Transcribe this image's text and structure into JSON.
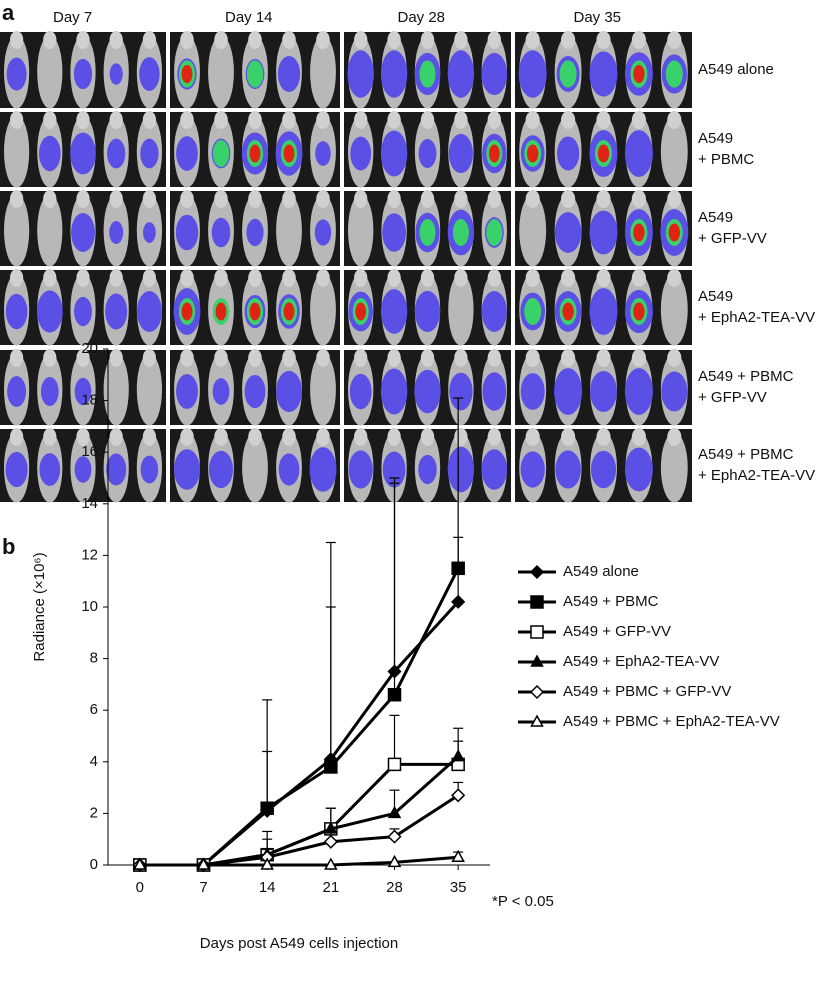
{
  "panel_a": {
    "label": "a",
    "columns": [
      "Day 7",
      "Day 14",
      "Day 28",
      "Day 35"
    ],
    "rows": [
      [
        "A549 alone"
      ],
      [
        "A549",
        "+ PBMC"
      ],
      [
        "A549",
        "+ GFP-VV"
      ],
      [
        "A549",
        "+ EphA2-TEA-VV"
      ],
      [
        "A549 + PBMC",
        "+ GFP-VV"
      ],
      [
        "A549 + PBMC",
        "+ EphA2-TEA-VV"
      ]
    ]
  },
  "chart_data": {
    "type": "line",
    "panel_label": "b",
    "x_label": "Days post A549 cells injection",
    "y_label": "Radiance (×10⁶)",
    "annotation": "*P < 0.05",
    "x": [
      0,
      7,
      14,
      21,
      28,
      35
    ],
    "xlim": [
      -3.5,
      38.5
    ],
    "xticks": [
      0,
      7,
      14,
      21,
      28,
      35
    ],
    "ylim": [
      0,
      20
    ],
    "yticks": [
      0,
      2,
      4,
      6,
      8,
      10,
      12,
      14,
      16,
      18,
      20
    ],
    "series": [
      {
        "name": "A549 alone",
        "color": "#000000",
        "marker": "diamond",
        "filled": true,
        "values": [
          0,
          0,
          2.1,
          4.1,
          7.5,
          10.2
        ],
        "errors": [
          null,
          null,
          2.3,
          8.4,
          7.3,
          2.5
        ]
      },
      {
        "name": "A549 + PBMC",
        "color": "#000000",
        "marker": "square",
        "filled": true,
        "values": [
          0,
          0,
          2.2,
          3.8,
          6.6,
          11.5
        ],
        "errors": [
          null,
          null,
          4.2,
          6.2,
          8.4,
          6.6
        ]
      },
      {
        "name": "A549 + GFP-VV",
        "color": "#000000",
        "marker": "square",
        "filled": false,
        "values": [
          0,
          0,
          0.4,
          1.4,
          3.9,
          3.9
        ],
        "errors": [
          null,
          null,
          0.9,
          0.8,
          1.9,
          1.4
        ]
      },
      {
        "name": "A549 + EphA2-TEA-VV",
        "color": "#000000",
        "marker": "triangle",
        "filled": true,
        "values": [
          0,
          0,
          0.4,
          1.4,
          2.0,
          4.2
        ],
        "errors": [
          null,
          null,
          0.6,
          0.8,
          0.9,
          0.6
        ]
      },
      {
        "name": "A549 + PBMC + GFP-VV",
        "color": "#000000",
        "marker": "diamond",
        "filled": false,
        "values": [
          0,
          0,
          0.3,
          0.9,
          1.1,
          2.7
        ],
        "errors": [
          null,
          null,
          0.3,
          0.4,
          0.3,
          0.5
        ]
      },
      {
        "name": "A549 + PBMC + EphA2-TEA-VV",
        "color": "#000000",
        "marker": "triangle",
        "filled": false,
        "values": [
          0,
          0,
          0,
          0,
          0.1,
          0.3
        ],
        "errors": [
          null,
          null,
          null,
          null,
          null,
          0.2
        ]
      }
    ]
  }
}
